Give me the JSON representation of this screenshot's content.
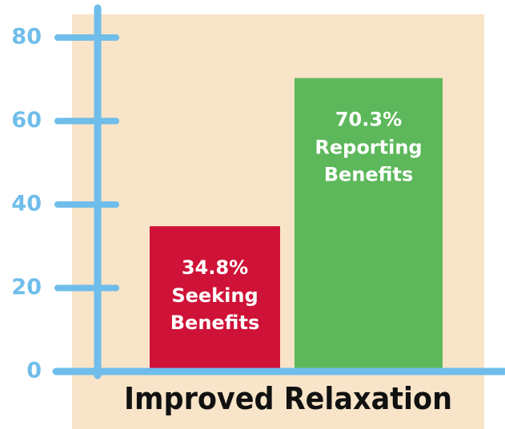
{
  "chart_data": {
    "type": "bar",
    "x_label": "Improved Relaxation",
    "categories": [
      "Seeking Benefits",
      "Reporting Benefits"
    ],
    "values": [
      34.8,
      70.3
    ],
    "value_labels": [
      "34.8%",
      "70.3%"
    ],
    "colors": [
      "#cf1237",
      "#5cb85a"
    ],
    "axis_color": "#6fbdea",
    "ylim": [
      0,
      80
    ],
    "yticks": [
      0,
      20,
      40,
      60,
      80
    ],
    "grid": false
  }
}
